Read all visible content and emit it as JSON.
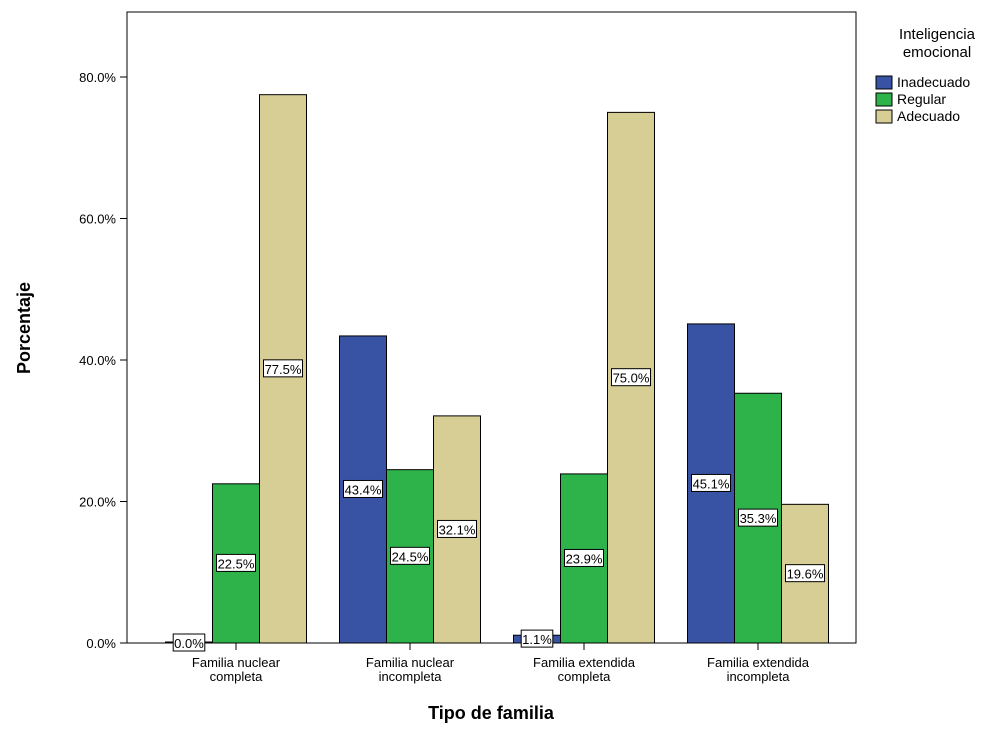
{
  "chart_data": {
    "type": "bar",
    "xlabel": "Tipo de familia",
    "ylabel": "Porcentaje",
    "ylim": [
      0,
      90
    ],
    "yticks": [
      "0.0%",
      "20.0%",
      "40.0%",
      "60.0%",
      "80.0%"
    ],
    "ytick_values": [
      0,
      20,
      40,
      60,
      80
    ],
    "categories": [
      [
        "Familia nuclear",
        "completa"
      ],
      [
        "Familia nuclear",
        "incompleta"
      ],
      [
        "Familia extendida",
        "completa"
      ],
      [
        "Familia extendida",
        "incompleta"
      ]
    ],
    "legend": {
      "title": [
        "Inteligencia",
        "emocional"
      ],
      "placement": "right"
    },
    "series": [
      {
        "name": "Inadecuado",
        "color": "#3953a4",
        "values": [
          0.0,
          43.4,
          1.1,
          45.1
        ],
        "labels": [
          "0.0%",
          "43.4%",
          "1.1%",
          "45.1%"
        ]
      },
      {
        "name": "Regular",
        "color": "#2db34a",
        "values": [
          22.5,
          24.5,
          23.9,
          35.3
        ],
        "labels": [
          "22.5%",
          "24.5%",
          "23.9%",
          "35.3%"
        ]
      },
      {
        "name": "Adecuado",
        "color": "#d7ce95",
        "values": [
          77.5,
          32.1,
          75.0,
          19.6
        ],
        "labels": [
          "77.5%",
          "32.1%",
          "75.0%",
          "19.6%"
        ]
      }
    ],
    "grid": false
  }
}
